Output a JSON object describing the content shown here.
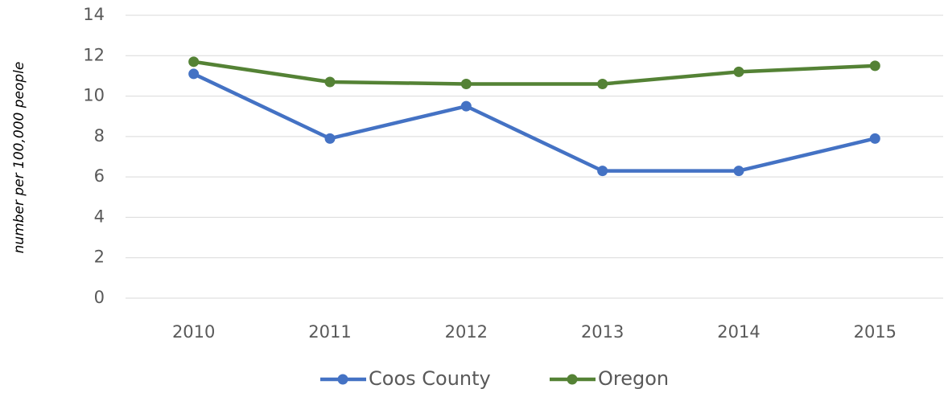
{
  "chart_data": {
    "type": "line",
    "y_label": "number per 100,000 people",
    "categories": [
      "2010",
      "2011",
      "2012",
      "2013",
      "2014",
      "2015"
    ],
    "series": [
      {
        "name": "Coos County",
        "color": "#4472c4",
        "values": [
          11.1,
          7.9,
          9.5,
          6.3,
          6.3,
          7.9
        ]
      },
      {
        "name": "Oregon",
        "color": "#548235",
        "values": [
          11.7,
          10.7,
          10.6,
          10.6,
          11.2,
          11.5
        ]
      }
    ],
    "ylim": [
      0,
      14
    ],
    "yticks": [
      0,
      2,
      4,
      6,
      8,
      10,
      12,
      14
    ],
    "grid": true,
    "legend": "bottom"
  }
}
